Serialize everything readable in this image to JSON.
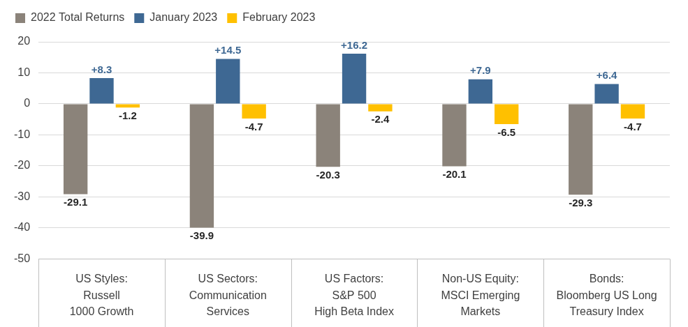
{
  "chart_data": {
    "type": "bar",
    "categories": [
      [
        "US Styles:",
        "Russell",
        "1000 Growth"
      ],
      [
        "US Sectors:",
        "Communication",
        "Services"
      ],
      [
        "US Factors:",
        "S&P 500",
        "High Beta Index"
      ],
      [
        "Non-US Equity:",
        "MSCI Emerging",
        "Markets"
      ],
      [
        "Bonds:",
        "Bloomberg US Long",
        "Treasury Index"
      ]
    ],
    "series": [
      {
        "name": "2022 Total Returns",
        "color": "#8b837a",
        "values": [
          -29.1,
          -39.9,
          -20.3,
          -20.1,
          -29.3
        ]
      },
      {
        "name": "January 2023",
        "color": "#3e6893",
        "values": [
          8.3,
          14.5,
          16.2,
          7.9,
          6.4
        ],
        "value_labels": [
          "+8.3",
          "+14.5",
          "+16.2",
          "+7.9",
          "+6.4"
        ]
      },
      {
        "name": "February 2023",
        "color": "#ffc000",
        "values": [
          -1.2,
          -4.7,
          -2.4,
          -6.5,
          -4.7
        ]
      }
    ],
    "ylim": [
      -50,
      20
    ],
    "yticks": [
      -50,
      -40,
      -30,
      -20,
      -10,
      0,
      10,
      20
    ],
    "grid": true,
    "legend": "top-left",
    "data_labels": true
  }
}
